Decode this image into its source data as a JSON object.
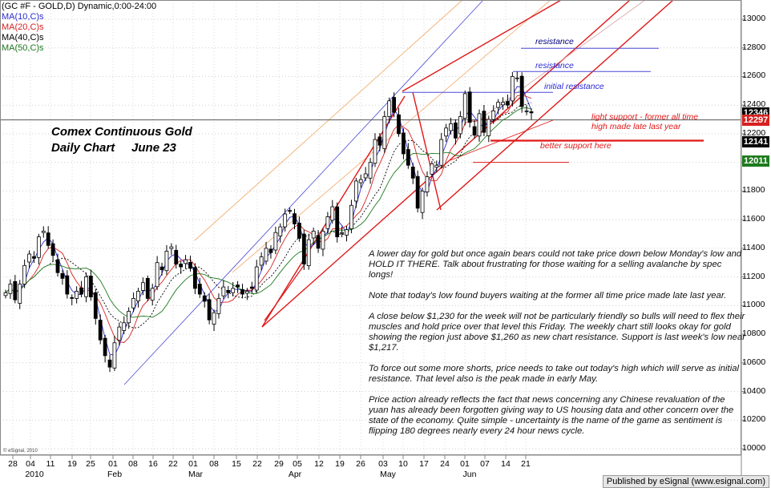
{
  "header": {
    "symbol_line": "(GC #F - GOLD,D) Dynamic,0:00-24:00",
    "ma_labels": [
      {
        "text": "MA(10,C)s",
        "color": "#2b2bd6"
      },
      {
        "text": "MA(20,C)s",
        "color": "#d62020"
      },
      {
        "text": "MA(40,C)s",
        "color": "#000000"
      },
      {
        "text": "MA(50,C)s",
        "color": "#1e7a1e"
      }
    ]
  },
  "title": {
    "line1": "Comex Continuous Gold",
    "line2": "Daily Chart     June 23"
  },
  "chart_data": {
    "type": "candlestick",
    "y_range": [
      10000,
      13100
    ],
    "y_ticks": [
      10000,
      10200,
      10400,
      10600,
      10800,
      11000,
      11200,
      11400,
      11600,
      11800,
      12000,
      12200,
      12400,
      12600,
      12800,
      13000
    ],
    "y_tick_labels": [
      "10000",
      "10200",
      "10400",
      "10600",
      "10800",
      "11000",
      "11200",
      "11400",
      "11600",
      "11800",
      "12000",
      "12200",
      "12400",
      "12600",
      "12800",
      "13000"
    ],
    "x_day_labels": [
      "28",
      "04",
      "11",
      "19",
      "25",
      "01",
      "08",
      "16",
      "22",
      "01",
      "08",
      "15",
      "22",
      "29",
      "05",
      "12",
      "19",
      "26",
      "03",
      "10",
      "17",
      "24",
      "01",
      "07",
      "14",
      "21"
    ],
    "x_month_labels": [
      "2010",
      "Feb",
      "Mar",
      "Apr",
      "May",
      "Jun"
    ],
    "price_boxes": [
      {
        "label": "12346",
        "value": 12346,
        "bg": "#000000"
      },
      {
        "label": "12297",
        "value": 12297,
        "bg": "#d62020"
      },
      {
        "label": "12141",
        "value": 12141,
        "bg": "#000000"
      },
      {
        "label": "12011",
        "value": 12011,
        "bg": "#1e7a1e"
      }
    ],
    "horizontal_levels": [
      {
        "value": 12797,
        "label": "resistance",
        "label_color": "#000080",
        "line_color": "#4a4ad8"
      },
      {
        "value": 12635,
        "label": "resistance",
        "label_color": "#2a2ad8",
        "line_color": "#4a4ad8"
      },
      {
        "value": 12489,
        "label": "initial resistance",
        "label_color": "#2a2ad8",
        "line_color": "#4a4ad8"
      },
      {
        "value": 12297,
        "label": "",
        "label_color": "#000000",
        "line_color": "#555555"
      },
      {
        "value": 12152,
        "label": "better support here",
        "label_color": "#e01818",
        "line_color": "#e01818"
      },
      {
        "value": 12000,
        "label": "",
        "label_color": "#e01818",
        "line_color": "#e01818"
      }
    ],
    "support_note": [
      "light support - former all time",
      "high made late last year"
    ],
    "closes": [
      11090,
      11150,
      11040,
      11150,
      11280,
      11360,
      11330,
      11480,
      11520,
      11420,
      11350,
      11230,
      11190,
      11080,
      11050,
      11100,
      11080,
      11200,
      11060,
      10910,
      10760,
      10650,
      10570,
      10740,
      10850,
      10880,
      10960,
      11050,
      11100,
      11160,
      11050,
      11120,
      11300,
      11250,
      11380,
      11410,
      11290,
      11270,
      11320,
      11260,
      11120,
      11080,
      11030,
      10900,
      10950,
      11050,
      11130,
      11090,
      11120,
      11130,
      11080,
      11100,
      11120,
      11270,
      11340,
      11400,
      11370,
      11510,
      11550,
      11640,
      11660,
      11570,
      11470,
      11290,
      11460,
      11520,
      11400,
      11520,
      11620,
      11690,
      11480,
      11510,
      11530,
      11700,
      11870,
      11880,
      11920,
      12000,
      12160,
      12120,
      12320,
      12430,
      12350,
      12200,
      12060,
      11980,
      11890,
      11680,
      11800,
      11900,
      11990,
      11980,
      12160,
      12240,
      12270,
      12170,
      12320,
      12480,
      12280,
      12190,
      12340,
      12210,
      12300,
      12360,
      12420,
      12420,
      12400,
      12600,
      12590,
      12390,
      12360,
      12346
    ]
  },
  "commentary": [
    "A lower day for gold but once again bears could not take price down below Monday's low and HOLD IT THERE. Talk about frustrating for those waiting for a selling avalanche by spec longs!",
    "Note that today's low found buyers waiting at the former all time price made late last year.",
    "A close below $1,230 for the week will not be particularly friendly so bulls will need to flex their muscles and hold price over that level this Friday. The weekly chart still looks okay for gold showing the region just above $1,260 as new chart resistance. Support is last week's low near $1,217.",
    "To force out some more shorts, price needs to take out today's high which will serve as initial resistance. That level also is the peak made in early May.",
    "Price action already reflects the fact that news concerning any Chinese revaluation of the yuan has already been forgotten giving way to US housing data and other concern over the state of the economy. Quite simple - uncertainty is the name of the game as sentiment is flipping 180 degrees nearly every 24 hour news cycle."
  ],
  "footer": "Published by eSignal (www.esignal.com)",
  "copyright": "© eSignal, 2010"
}
